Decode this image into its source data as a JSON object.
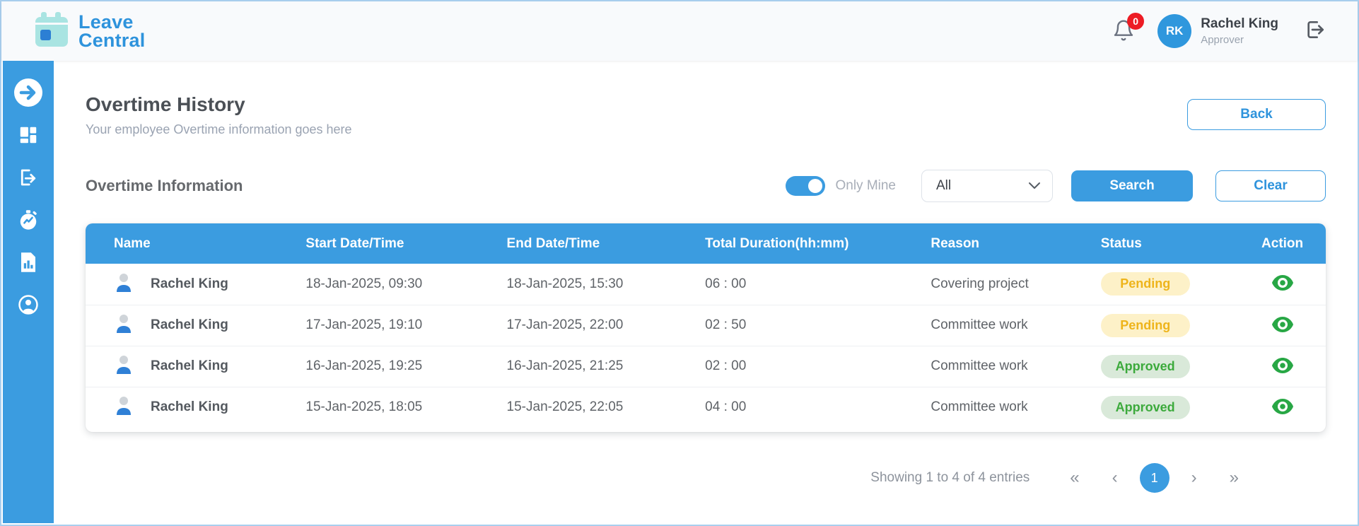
{
  "brand": {
    "line1": "Leave",
    "line2": "Central"
  },
  "topbar": {
    "notification_count": "0",
    "user": {
      "initials": "RK",
      "name": "Rachel King",
      "role": "Approver"
    }
  },
  "sidebar": {
    "items": [
      {
        "icon": "arrow-right-circle-icon"
      },
      {
        "icon": "dashboard-icon"
      },
      {
        "icon": "leave-exit-icon"
      },
      {
        "icon": "overtime-stopwatch-icon"
      },
      {
        "icon": "reports-icon"
      },
      {
        "icon": "profile-icon"
      }
    ]
  },
  "page": {
    "title": "Overtime History",
    "subtitle": "Your employee Overtime information goes here",
    "back_button": "Back"
  },
  "filters": {
    "section_title": "Overtime Information",
    "only_mine_label": "Only Mine",
    "only_mine_on": true,
    "status_filter_value": "All",
    "search_button": "Search",
    "clear_button": "Clear"
  },
  "table": {
    "columns": [
      "Name",
      "Start Date/Time",
      "End Date/Time",
      "Total Duration(hh:mm)",
      "Reason",
      "Status",
      "Action"
    ],
    "rows": [
      {
        "name": "Rachel King",
        "start": "18-Jan-2025, 09:30",
        "end": "18-Jan-2025, 15:30",
        "duration": "06 : 00",
        "reason": "Covering project",
        "status": "Pending"
      },
      {
        "name": "Rachel King",
        "start": "17-Jan-2025, 19:10",
        "end": "17-Jan-2025, 22:00",
        "duration": "02 : 50",
        "reason": "Committee work",
        "status": "Pending"
      },
      {
        "name": "Rachel King",
        "start": "16-Jan-2025, 19:25",
        "end": "16-Jan-2025, 21:25",
        "duration": "02 : 00",
        "reason": "Committee work",
        "status": "Approved"
      },
      {
        "name": "Rachel King",
        "start": "15-Jan-2025, 18:05",
        "end": "15-Jan-2025, 22:05",
        "duration": "04 : 00",
        "reason": "Committee work",
        "status": "Approved"
      }
    ]
  },
  "pagination": {
    "summary": "Showing 1 to 4 of 4 entries",
    "first": "«",
    "prev": "‹",
    "page": "1",
    "next": "›",
    "last": "»"
  },
  "colors": {
    "primary_blue": "#3b9ce0",
    "pending_bg": "#fdf1c8",
    "pending_text": "#eeb41b",
    "approved_bg": "#d9e9d9",
    "approved_text": "#3caa3c",
    "eye_green": "#28a745",
    "badge_red": "#ed1c24",
    "avatar_blue": "#2f97dd",
    "logo_teal": "#a9e4e2"
  }
}
